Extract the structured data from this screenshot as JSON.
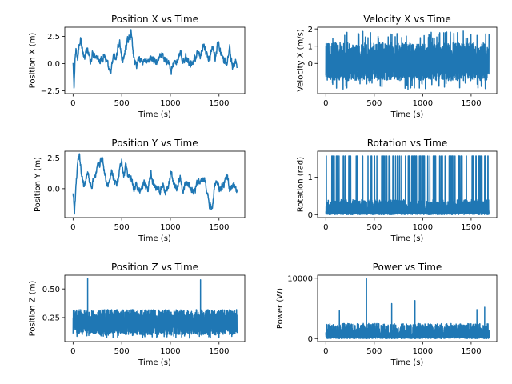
{
  "chart_data": [
    {
      "type": "line",
      "title": "Position X vs Time",
      "xlabel": "Time (s)",
      "ylabel": "Position X (m)",
      "xlim": [
        -85,
        1765
      ],
      "ylim": [
        -2.75,
        3.35
      ],
      "xticks": [
        0,
        500,
        1000,
        1500
      ],
      "yticks": [
        -2.5,
        0.0,
        2.5
      ],
      "ytick_labels": [
        "−2.5",
        "0.0",
        "2.5"
      ],
      "color": "#1f77b4",
      "series": [
        {
          "x": [
            0,
            10,
            20,
            30,
            45,
            60,
            80,
            100,
            120,
            140,
            160,
            180,
            200,
            230,
            260,
            290,
            320,
            340,
            360,
            380,
            400,
            420,
            440,
            460,
            480,
            500,
            520,
            540,
            560,
            580,
            600,
            615,
            630,
            650,
            680,
            710,
            740,
            770,
            800,
            830,
            860,
            890,
            920,
            950,
            980,
            1010,
            1040,
            1070,
            1100,
            1130,
            1160,
            1190,
            1220,
            1250,
            1280,
            1310,
            1340,
            1370,
            1400,
            1430,
            1460,
            1490,
            1520,
            1550,
            1580,
            1610,
            1640,
            1670,
            1685
          ],
          "y": [
            0.0,
            -2.5,
            0.5,
            1.2,
            0.3,
            1.5,
            2.5,
            1.0,
            0.5,
            1.3,
            0.8,
            0.2,
            1.0,
            0.8,
            0.5,
            0.3,
            0.9,
            0.2,
            -0.3,
            -1.0,
            -0.2,
            0.8,
            0.3,
            1.5,
            2.0,
            0.5,
            0.3,
            1.5,
            2.0,
            2.4,
            3.0,
            1.0,
            0.3,
            -0.2,
            0.6,
            0.2,
            0.4,
            0.0,
            0.6,
            0.3,
            0.1,
            0.5,
            0.7,
            0.2,
            0.4,
            -0.8,
            0.3,
            0.1,
            0.9,
            0.3,
            0.6,
            0.2,
            0.0,
            0.5,
            1.0,
            0.4,
            1.8,
            0.8,
            0.3,
            1.5,
            0.6,
            2.0,
            1.0,
            0.3,
            0.0,
            1.5,
            -0.5,
            0.3,
            -0.2
          ],
          "noise": 0.5
        }
      ]
    },
    {
      "type": "line",
      "title": "Velocity X vs Time",
      "xlabel": "Time (s)",
      "ylabel": "Velocity X (m/s)",
      "xlim": [
        -85,
        1765
      ],
      "ylim": [
        -1.75,
        2.1
      ],
      "xticks": [
        0,
        500,
        1000,
        1500
      ],
      "yticks": [
        0,
        1,
        2
      ],
      "ytick_labels": [
        "0",
        "1",
        "2"
      ],
      "color": "#1f77b4",
      "series": [
        {
          "x_range": [
            0,
            1685
          ],
          "center": 0.0,
          "band": [
            -1.0,
            1.2
          ],
          "spike_max": 1.9,
          "spike_min": -1.5
        }
      ]
    },
    {
      "type": "line",
      "title": "Position Y vs Time",
      "xlabel": "Time (s)",
      "ylabel": "Position Y (m)",
      "xlim": [
        -85,
        1765
      ],
      "ylim": [
        -2.35,
        3.05
      ],
      "xticks": [
        0,
        500,
        1000,
        1500
      ],
      "yticks": [
        0.0,
        2.5
      ],
      "ytick_labels": [
        "0.0",
        "2.5"
      ],
      "color": "#1f77b4",
      "series": [
        {
          "x": [
            0,
            15,
            30,
            50,
            70,
            90,
            110,
            130,
            150,
            170,
            190,
            210,
            240,
            270,
            300,
            320,
            340,
            360,
            380,
            400,
            420,
            450,
            480,
            500,
            520,
            540,
            560,
            580,
            600,
            620,
            650,
            680,
            710,
            740,
            770,
            800,
            830,
            860,
            890,
            920,
            950,
            980,
            1010,
            1040,
            1070,
            1100,
            1130,
            1160,
            1190,
            1220,
            1250,
            1280,
            1310,
            1340,
            1370,
            1400,
            1430,
            1460,
            1490,
            1520,
            1550,
            1580,
            1610,
            1640,
            1670,
            1685
          ],
          "y": [
            -0.5,
            -2.0,
            0.3,
            2.3,
            2.5,
            1.0,
            0.3,
            0.8,
            1.2,
            0.5,
            0.2,
            0.8,
            1.5,
            2.0,
            2.6,
            1.5,
            0.5,
            0.2,
            1.0,
            1.5,
            0.8,
            0.3,
            1.5,
            2.2,
            0.9,
            1.8,
            1.2,
            0.8,
            1.0,
            0.0,
            0.3,
            -0.2,
            0.2,
            0.5,
            0.0,
            1.2,
            0.3,
            0.1,
            -0.3,
            0.4,
            -0.3,
            0.2,
            1.3,
            0.3,
            0.1,
            0.8,
            -0.3,
            0.5,
            0.2,
            0.0,
            -0.3,
            0.4,
            0.9,
            0.6,
            0.2,
            -1.2,
            -1.8,
            0.5,
            0.2,
            0.0,
            0.3,
            1.3,
            -0.2,
            0.3,
            0.0,
            -0.2
          ],
          "noise": 0.45
        }
      ]
    },
    {
      "type": "line",
      "title": "Rotation vs Time",
      "xlabel": "Time (s)",
      "ylabel": "Rotation (rad)",
      "xlim": [
        -85,
        1765
      ],
      "ylim": [
        -0.08,
        1.7
      ],
      "xticks": [
        0,
        500,
        1000,
        1500
      ],
      "yticks": [
        0,
        1
      ],
      "ytick_labels": [
        "0",
        "1"
      ],
      "color": "#1f77b4",
      "series": [
        {
          "x_range": [
            0,
            1685
          ],
          "base": 0.0,
          "band": [
            0.0,
            0.4
          ],
          "spike_max": 1.57
        }
      ]
    },
    {
      "type": "line",
      "title": "Position Z vs Time",
      "xlabel": "Time (s)",
      "ylabel": "Position Z (m)",
      "xlim": [
        -85,
        1765
      ],
      "ylim": [
        0.04,
        0.62
      ],
      "xticks": [
        0,
        500,
        1000,
        1500
      ],
      "yticks": [
        0.25,
        0.5
      ],
      "ytick_labels": [
        "0.25",
        "0.50"
      ],
      "color": "#1f77b4",
      "series": [
        {
          "x_range": [
            0,
            1685
          ],
          "center": 0.21,
          "band": [
            0.1,
            0.32
          ],
          "spikes": [
            [
              150,
              0.59
            ],
            [
              1310,
              0.58
            ]
          ],
          "spike_min": 0.07
        }
      ]
    },
    {
      "type": "line",
      "title": "Power vs Time",
      "xlabel": "Time (s)",
      "ylabel": "Power (W)",
      "xlim": [
        -85,
        1765
      ],
      "ylim": [
        -500,
        10500
      ],
      "xticks": [
        0,
        500,
        1000,
        1500
      ],
      "yticks": [
        0,
        10000
      ],
      "ytick_labels": [
        "0",
        "10000"
      ],
      "color": "#1f77b4",
      "series": [
        {
          "x_range": [
            0,
            1685
          ],
          "base": 0,
          "band": [
            0,
            2500
          ],
          "spikes": [
            [
              420,
              9900
            ],
            [
              920,
              6300
            ],
            [
              680,
              5800
            ],
            [
              1640,
              5200
            ],
            [
              1560,
              4800
            ],
            [
              140,
              4600
            ]
          ]
        }
      ]
    }
  ]
}
